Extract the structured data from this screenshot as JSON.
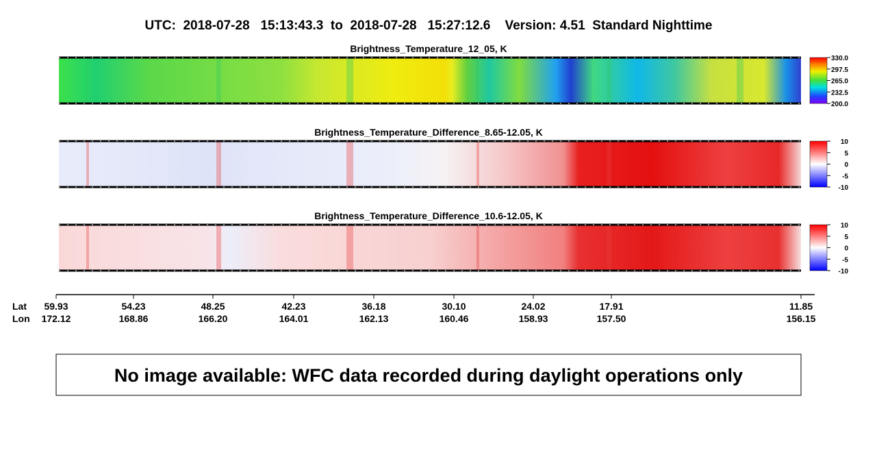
{
  "title": "UTC:  2018-07-28   15:13:43.3  to  2018-07-28   15:27:12.6    Version: 4.51  Standard Nighttime",
  "panels": [
    {
      "title": "Brightness_Temperature_12_05, K",
      "colorbar_labels": [
        "330.0",
        "297.5",
        "265.0",
        "232.5",
        "200.0"
      ]
    },
    {
      "title": "Brightness_Temperature_Difference_8.65-12.05, K",
      "colorbar_labels": [
        "10",
        "5",
        "0",
        "-5",
        "-10"
      ]
    },
    {
      "title": "Brightness_Temperature_Difference_10.6-12.05, K",
      "colorbar_labels": [
        "10",
        "5",
        "0",
        "-5",
        "-10"
      ]
    }
  ],
  "axis": {
    "lat_label": "Lat",
    "lon_label": "Lon",
    "lat": [
      "59.93",
      "54.23",
      "48.25",
      "42.23",
      "36.18",
      "30.10",
      "24.02",
      "17.91",
      "11.85"
    ],
    "lon": [
      "172.12",
      "168.86",
      "166.20",
      "164.01",
      "162.13",
      "160.46",
      "158.93",
      "157.50",
      "156.15"
    ]
  },
  "message": "No image available: WFC data recorded during daylight operations only"
}
